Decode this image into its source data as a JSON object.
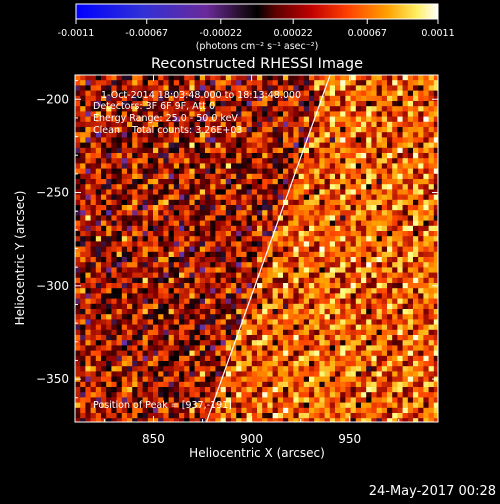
{
  "colorbar": {
    "tick_labels": [
      "-0.0011",
      "-0.00067",
      "-0.00022",
      "0.00022",
      "0.00067",
      "0.0011"
    ],
    "tick_values": [
      -0.0011,
      -0.00067,
      -0.00022,
      0.00022,
      0.00067,
      0.0011
    ],
    "range": [
      -0.0011,
      0.0011
    ],
    "unit_label": "(photons cm⁻² s⁻¹ asec⁻²)"
  },
  "chart_data": {
    "type": "heatmap",
    "title": "Reconstructed RHESSI Image",
    "xlabel": "Heliocentric X (arcsec)",
    "ylabel": "Heliocentric Y (arcsec)",
    "xlim": [
      810,
      995
    ],
    "ylim": [
      -373,
      -187
    ],
    "x_ticks": [
      850,
      900,
      950
    ],
    "y_ticks": [
      -200,
      -250,
      -300,
      -350
    ],
    "x_tick_labels": [
      "850",
      "900",
      "950"
    ],
    "y_tick_labels": [
      "−200",
      "−250",
      "−300",
      "−350"
    ],
    "annotations": [
      "1-Oct-2014 18:03:48.000 to 18:13:48.000",
      "Detectors: 3F 6F 9F, Att 0",
      "Energy Range: 25.0 - 50.0 keV",
      "Clean    Total counts: 3.26E+03",
      "Position of Peak = [937,-191]"
    ],
    "peak": [
      937,
      -191
    ],
    "limb_line": [
      [
        877,
        -373
      ],
      [
        940,
        -187
      ]
    ],
    "colormap": [
      "#0000ff",
      "#3a3acb",
      "#7a2a8a",
      "#000000",
      "#8b0000",
      "#ff4500",
      "#ffa500",
      "#ffff80",
      "#ffffff"
    ]
  },
  "footer": {
    "timestamp": "24-May-2017 00:28"
  }
}
